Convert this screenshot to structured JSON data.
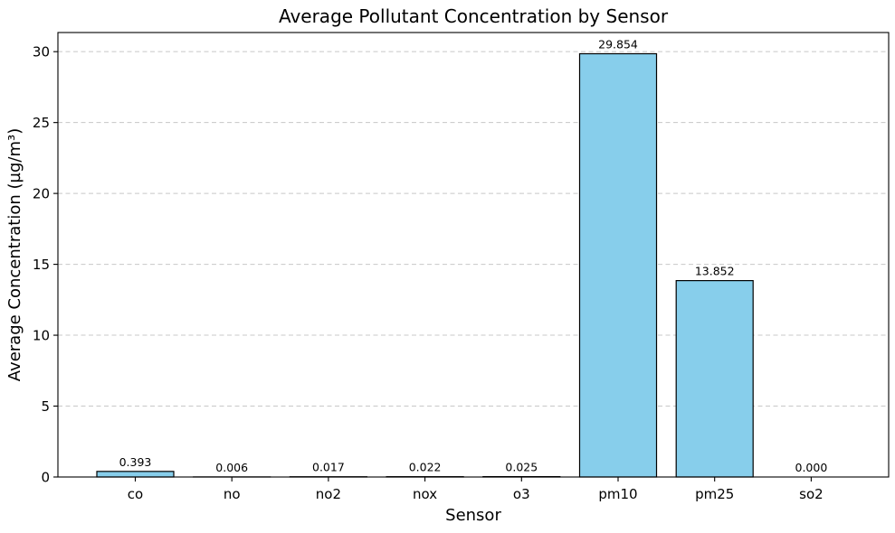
{
  "chart_data": {
    "type": "bar",
    "title": "Average Pollutant Concentration by Sensor",
    "xlabel": "Sensor",
    "ylabel": "Average Concentration (µg/m³)",
    "categories": [
      "co",
      "no",
      "no2",
      "nox",
      "o3",
      "pm10",
      "pm25",
      "so2"
    ],
    "values": [
      0.393,
      0.006,
      0.017,
      0.022,
      0.025,
      29.854,
      13.852,
      0.0
    ],
    "value_labels": [
      "0.393",
      "0.006",
      "0.017",
      "0.022",
      "0.025",
      "29.854",
      "13.852",
      "0.000"
    ],
    "ylim": [
      0,
      31.35
    ],
    "yticks": [
      0,
      5,
      10,
      15,
      20,
      25,
      30
    ],
    "ytick_labels": [
      "0",
      "5",
      "10",
      "15",
      "20",
      "25",
      "30"
    ],
    "grid": "y-dashed",
    "colors": {
      "bar_fill": "#87ceeb",
      "bar_edge": "#000000",
      "grid": "#c8c8c8"
    }
  }
}
